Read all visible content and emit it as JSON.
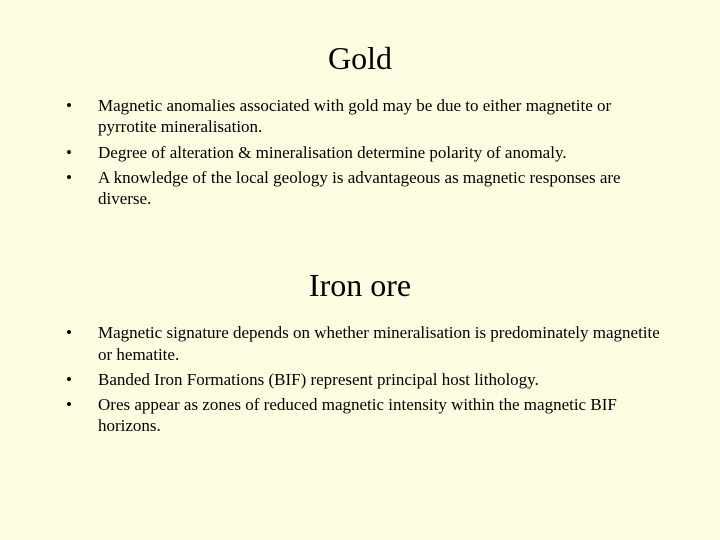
{
  "background_color": "#fdfce0",
  "text_color": "#000000",
  "title_fontsize": 32,
  "body_fontsize": 17,
  "font_family": "Times New Roman",
  "sections": [
    {
      "title": "Gold",
      "bullets": [
        "Magnetic anomalies associated with gold may be due to either magnetite or pyrrotite mineralisation.",
        "Degree of alteration & mineralisation determine polarity of anomaly.",
        "A knowledge of the local geology is advantageous as magnetic responses are diverse."
      ]
    },
    {
      "title": "Iron ore",
      "bullets": [
        "Magnetic signature depends on whether mineralisation is predominately magnetite or hematite.",
        "Banded Iron Formations (BIF) represent principal host lithology.",
        "Ores appear as zones of reduced magnetic intensity within the magnetic BIF horizons."
      ]
    }
  ]
}
